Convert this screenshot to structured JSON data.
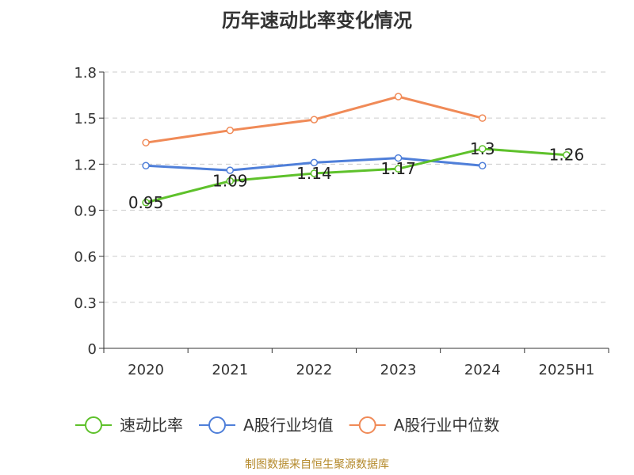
{
  "title": "历年速动比率变化情况",
  "source": "制图数据来自恒生聚源数据库",
  "chart_data": {
    "type": "line",
    "categories": [
      "2020",
      "2021",
      "2022",
      "2023",
      "2024",
      "2025H1"
    ],
    "ylim": [
      0,
      1.8
    ],
    "yticks": [
      "0",
      "0.3",
      "0.6",
      "0.9",
      "1.2",
      "1.5",
      "1.8"
    ],
    "grid": true,
    "legend_position": "bottom",
    "series": [
      {
        "name": "速动比率",
        "color": "#5ec12b",
        "values": [
          0.95,
          1.09,
          1.14,
          1.17,
          1.3,
          1.26
        ],
        "labels": [
          "0.95",
          "1.09",
          "1.14",
          "1.17",
          "1.3",
          "1.26"
        ]
      },
      {
        "name": "A股行业均值",
        "color": "#4f7fd9",
        "values": [
          1.19,
          1.16,
          1.21,
          1.24,
          1.19,
          null
        ]
      },
      {
        "name": "A股行业中位数",
        "color": "#f08a57",
        "values": [
          1.34,
          1.42,
          1.49,
          1.64,
          1.5,
          null
        ]
      }
    ]
  }
}
